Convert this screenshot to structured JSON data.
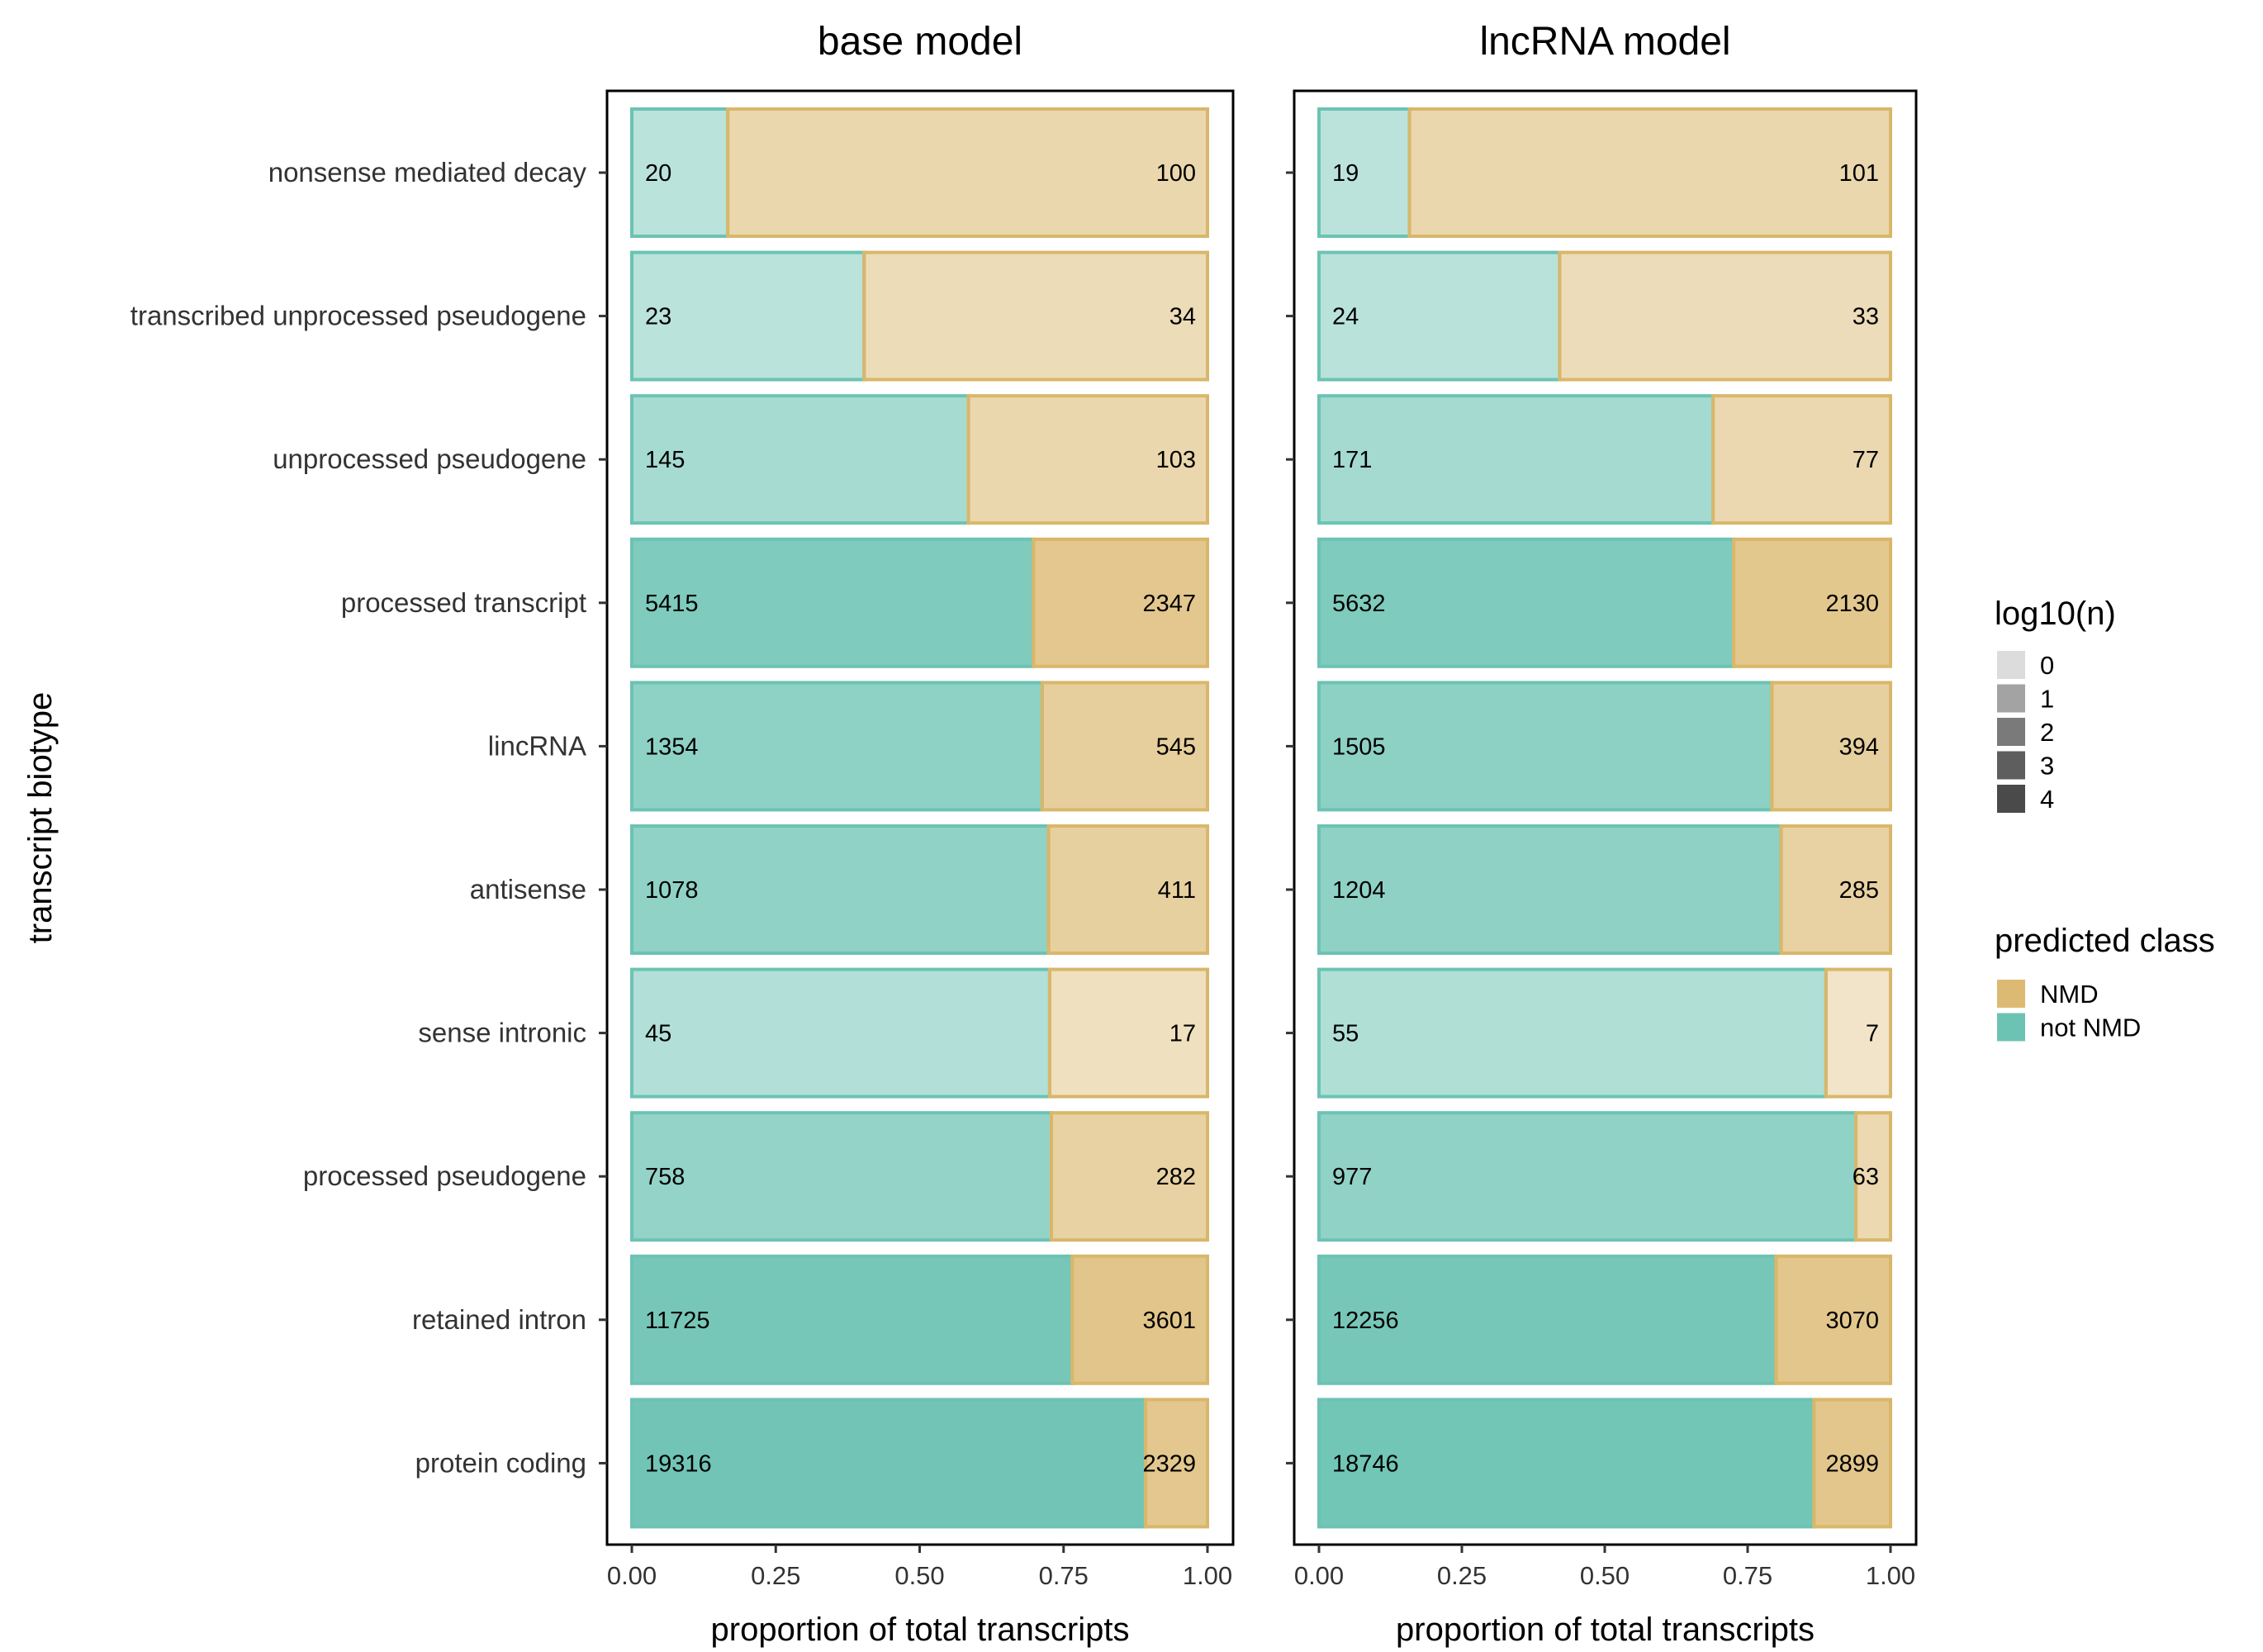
{
  "chart_data": {
    "type": "bar",
    "orientation": "horizontal",
    "stacked": "proportion",
    "ylabel": "transcript biotype",
    "categories": [
      "nonsense mediated decay",
      "transcribed unprocessed pseudogene",
      "unprocessed pseudogene",
      "processed transcript",
      "lincRNA",
      "antisense",
      "sense intronic",
      "processed pseudogene",
      "retained intron",
      "protein coding"
    ],
    "xlim": [
      0,
      1
    ],
    "xticks": [
      "0.00",
      "0.25",
      "0.50",
      "0.75",
      "1.00"
    ],
    "colors": {
      "not_nmd": "#6CC3B3",
      "nmd": "#DCBA73",
      "not_nmd_border": "#6CC3B3",
      "nmd_border": "#D9B76A"
    },
    "panels": [
      {
        "title": "base model",
        "xlabel": "proportion of total transcripts",
        "not_nmd": [
          20,
          23,
          145,
          5415,
          1354,
          1078,
          45,
          758,
          11725,
          19316
        ],
        "nmd": [
          100,
          34,
          103,
          2347,
          545,
          411,
          17,
          282,
          3601,
          2329
        ]
      },
      {
        "title": "lncRNA model",
        "xlabel": "proportion of total transcripts",
        "not_nmd": [
          19,
          24,
          171,
          5632,
          1505,
          1204,
          55,
          977,
          12256,
          18746
        ],
        "nmd": [
          101,
          33,
          77,
          2130,
          394,
          285,
          7,
          63,
          3070,
          2899
        ]
      }
    ],
    "legends": [
      {
        "title": "log10(n)",
        "type": "alpha",
        "entries": [
          "0",
          "1",
          "2",
          "3",
          "4"
        ]
      },
      {
        "title": "predicted class",
        "type": "fill",
        "entries": [
          {
            "label": "NMD",
            "color": "#DCBA73"
          },
          {
            "label": "not NMD",
            "color": "#6CC3B3"
          }
        ]
      }
    ]
  }
}
